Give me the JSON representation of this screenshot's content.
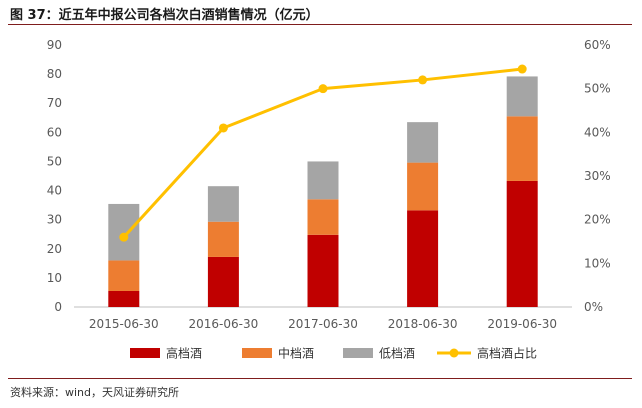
{
  "chart_data": {
    "type": "bar",
    "title": "图 37：近五年中报公司各档次白酒销售情况（亿元）",
    "categories": [
      "2015-06-30",
      "2016-06-30",
      "2017-06-30",
      "2018-06-30",
      "2019-06-30"
    ],
    "series": [
      {
        "name": "高档酒",
        "type": "bar",
        "stack": "total",
        "axis": "left",
        "color": "#c00000",
        "values": [
          5.5,
          17.2,
          24.8,
          33.2,
          43.3
        ]
      },
      {
        "name": "中档酒",
        "type": "bar",
        "stack": "total",
        "axis": "left",
        "color": "#ed7d31",
        "values": [
          10.5,
          12.1,
          12.2,
          16.4,
          22.2
        ]
      },
      {
        "name": "低档酒",
        "type": "bar",
        "stack": "total",
        "axis": "left",
        "color": "#a5a5a5",
        "values": [
          19.4,
          12.2,
          13.0,
          13.9,
          13.7
        ]
      },
      {
        "name": "高档酒占比",
        "type": "line",
        "axis": "right",
        "color": "#ffc000",
        "values": [
          0.16,
          0.41,
          0.5,
          0.52,
          0.545
        ]
      }
    ],
    "yaxis_left": {
      "min": 0,
      "max": 90,
      "ticks": [
        "0",
        "10",
        "20",
        "30",
        "40",
        "50",
        "60",
        "70",
        "80",
        "90"
      ]
    },
    "yaxis_right": {
      "min": 0,
      "max": 0.6,
      "ticks": [
        "0%",
        "10%",
        "20%",
        "30%",
        "40%",
        "50%",
        "60%"
      ]
    },
    "grid": false,
    "legend": "bottom",
    "source": "资料来源：wind，天风证券研究所"
  }
}
